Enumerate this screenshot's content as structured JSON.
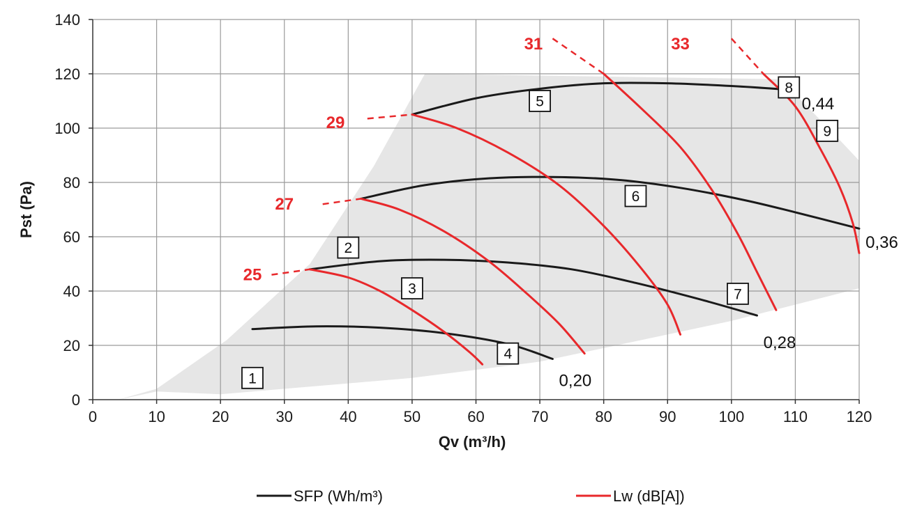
{
  "chart_data": {
    "type": "line",
    "xlabel": "Qv (m³/h)",
    "ylabel": "Pst (Pa)",
    "xlim": [
      0,
      120
    ],
    "ylim": [
      0,
      140
    ],
    "x_ticks": [
      0,
      10,
      20,
      30,
      40,
      50,
      60,
      70,
      80,
      90,
      100,
      110,
      120
    ],
    "y_ticks": [
      0,
      20,
      40,
      60,
      80,
      100,
      120,
      140
    ],
    "grid": true,
    "colors": {
      "sfp": "#1a1a1a",
      "lw": "#e8282b",
      "area": "#e6e6e6",
      "grid": "#9a9a9a"
    },
    "operating_area": [
      [
        4,
        0
      ],
      [
        10,
        3
      ],
      [
        20,
        2
      ],
      [
        30,
        4
      ],
      [
        40,
        6
      ],
      [
        50,
        8
      ],
      [
        60,
        11
      ],
      [
        70,
        14
      ],
      [
        80,
        19
      ],
      [
        90,
        24
      ],
      [
        100,
        29
      ],
      [
        110,
        35
      ],
      [
        120,
        41
      ],
      [
        120,
        88
      ],
      [
        116,
        98
      ],
      [
        111,
        110
      ],
      [
        108,
        118
      ],
      [
        52,
        120
      ],
      [
        44,
        86
      ],
      [
        34,
        50
      ],
      [
        21,
        22
      ],
      [
        10,
        4
      ]
    ],
    "sfp_series": [
      {
        "name": "0,20",
        "points": [
          [
            25,
            26
          ],
          [
            35,
            27
          ],
          [
            45,
            26.5
          ],
          [
            55,
            24.5
          ],
          [
            65,
            20.5
          ],
          [
            72,
            15
          ]
        ]
      },
      {
        "name": "0,28",
        "points": [
          [
            34,
            48
          ],
          [
            45,
            51
          ],
          [
            55,
            51.5
          ],
          [
            65,
            50.5
          ],
          [
            75,
            48
          ],
          [
            85,
            43
          ],
          [
            95,
            37
          ],
          [
            104,
            31
          ]
        ]
      },
      {
        "name": "0,36",
        "points": [
          [
            42,
            74
          ],
          [
            52,
            79
          ],
          [
            62,
            81.5
          ],
          [
            72,
            82
          ],
          [
            82,
            81
          ],
          [
            92,
            78
          ],
          [
            102,
            73.5
          ],
          [
            110,
            69
          ],
          [
            120,
            63
          ]
        ]
      },
      {
        "name": "0,44",
        "points": [
          [
            50,
            105
          ],
          [
            60,
            111
          ],
          [
            70,
            114.5
          ],
          [
            80,
            116.5
          ],
          [
            90,
            116.5
          ],
          [
            100,
            115.5
          ],
          [
            110,
            114
          ]
        ]
      }
    ],
    "lw_series": [
      {
        "name": "25",
        "label_at": [
          25,
          46
        ],
        "dashed": [
          [
            28,
            46
          ],
          [
            34,
            48
          ]
        ],
        "points": [
          [
            34,
            48
          ],
          [
            40,
            45
          ],
          [
            45,
            40
          ],
          [
            50,
            33
          ],
          [
            55,
            25
          ],
          [
            59,
            17.5
          ],
          [
            61,
            13
          ]
        ]
      },
      {
        "name": "27",
        "label_at": [
          30,
          72
        ],
        "dashed": [
          [
            36,
            72
          ],
          [
            42,
            74
          ]
        ],
        "points": [
          [
            42,
            74
          ],
          [
            48,
            70
          ],
          [
            55,
            62
          ],
          [
            62,
            51
          ],
          [
            68,
            39
          ],
          [
            73,
            28
          ],
          [
            77,
            17
          ]
        ]
      },
      {
        "name": "29",
        "label_at": [
          38,
          102
        ],
        "dashed": [
          [
            43,
            103.5
          ],
          [
            50,
            105
          ]
        ],
        "points": [
          [
            50,
            105
          ],
          [
            57,
            100
          ],
          [
            65,
            91
          ],
          [
            73,
            79
          ],
          [
            80,
            64
          ],
          [
            86,
            48
          ],
          [
            90,
            35
          ],
          [
            92,
            24
          ]
        ]
      },
      {
        "name": "31",
        "label_at": [
          69,
          131
        ],
        "dashed": [
          [
            72,
            133
          ],
          [
            80,
            120
          ]
        ],
        "points": [
          [
            80,
            120
          ],
          [
            86,
            107
          ],
          [
            92,
            93
          ],
          [
            97,
            77
          ],
          [
            101,
            61
          ],
          [
            104,
            47
          ],
          [
            107,
            33
          ]
        ]
      },
      {
        "name": "33",
        "label_at": [
          92,
          131
        ],
        "dashed": [
          [
            100,
            133
          ],
          [
            105,
            120
          ]
        ],
        "points": [
          [
            105,
            120
          ],
          [
            110,
            108
          ],
          [
            114,
            92
          ],
          [
            117,
            78
          ],
          [
            119,
            65
          ],
          [
            120,
            54
          ]
        ]
      }
    ],
    "sfp_end_labels": [
      {
        "text": "0,20",
        "at": [
          73,
          7
        ]
      },
      {
        "text": "0,28",
        "at": [
          105,
          21
        ]
      },
      {
        "text": "0,36",
        "at": [
          121,
          58
        ]
      },
      {
        "text": "0,44",
        "at": [
          111,
          109
        ]
      }
    ],
    "boxes": [
      {
        "text": "1",
        "at": [
          25,
          8
        ]
      },
      {
        "text": "2",
        "at": [
          40,
          56
        ]
      },
      {
        "text": "3",
        "at": [
          50,
          41
        ]
      },
      {
        "text": "4",
        "at": [
          65,
          17
        ]
      },
      {
        "text": "5",
        "at": [
          70,
          110
        ]
      },
      {
        "text": "6",
        "at": [
          85,
          75
        ]
      },
      {
        "text": "7",
        "at": [
          101,
          39
        ]
      },
      {
        "text": "8",
        "at": [
          109,
          115
        ]
      },
      {
        "text": "9",
        "at": [
          115,
          99
        ]
      }
    ],
    "legend": {
      "placement": "bottom",
      "items": [
        {
          "label": "SFP (Wh/m³)",
          "color": "#1a1a1a"
        },
        {
          "label": "Lw (dB[A])",
          "color": "#e8282b"
        }
      ]
    }
  }
}
